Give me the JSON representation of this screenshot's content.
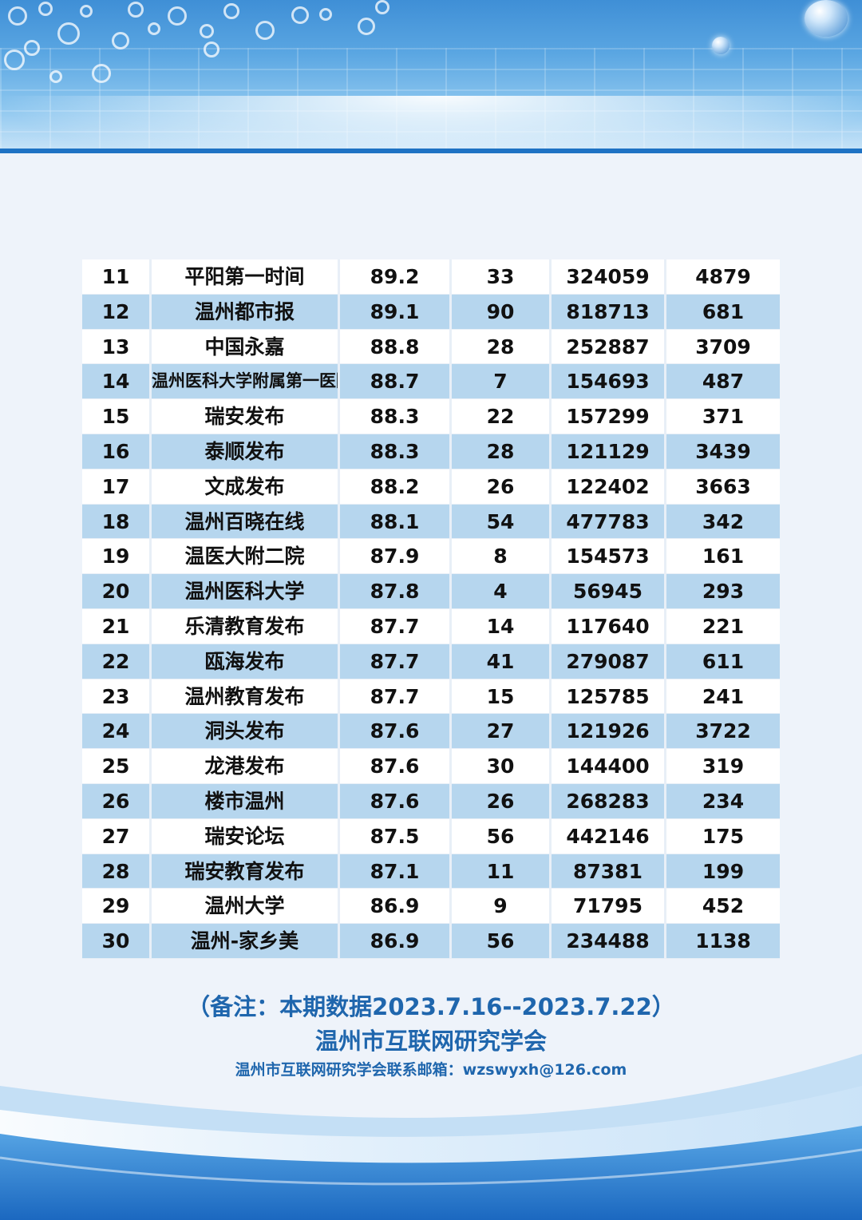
{
  "rows": [
    {
      "rank": "11",
      "name": "平阳第一时间",
      "score": "89.2",
      "posts": "33",
      "reads": "324059",
      "likes": "4879"
    },
    {
      "rank": "12",
      "name": "温州都市报",
      "score": "89.1",
      "posts": "90",
      "reads": "818713",
      "likes": "681"
    },
    {
      "rank": "13",
      "name": "中国永嘉",
      "score": "88.8",
      "posts": "28",
      "reads": "252887",
      "likes": "3709"
    },
    {
      "rank": "14",
      "name": "温州医科大学附属第一医院",
      "score": "88.7",
      "posts": "7",
      "reads": "154693",
      "likes": "487"
    },
    {
      "rank": "15",
      "name": "瑞安发布",
      "score": "88.3",
      "posts": "22",
      "reads": "157299",
      "likes": "371"
    },
    {
      "rank": "16",
      "name": "泰顺发布",
      "score": "88.3",
      "posts": "28",
      "reads": "121129",
      "likes": "3439"
    },
    {
      "rank": "17",
      "name": "文成发布",
      "score": "88.2",
      "posts": "26",
      "reads": "122402",
      "likes": "3663"
    },
    {
      "rank": "18",
      "name": "温州百晓在线",
      "score": "88.1",
      "posts": "54",
      "reads": "477783",
      "likes": "342"
    },
    {
      "rank": "19",
      "name": "温医大附二院",
      "score": "87.9",
      "posts": "8",
      "reads": "154573",
      "likes": "161"
    },
    {
      "rank": "20",
      "name": "温州医科大学",
      "score": "87.8",
      "posts": "4",
      "reads": "56945",
      "likes": "293"
    },
    {
      "rank": "21",
      "name": "乐清教育发布",
      "score": "87.7",
      "posts": "14",
      "reads": "117640",
      "likes": "221"
    },
    {
      "rank": "22",
      "name": "瓯海发布",
      "score": "87.7",
      "posts": "41",
      "reads": "279087",
      "likes": "611"
    },
    {
      "rank": "23",
      "name": "温州教育发布",
      "score": "87.7",
      "posts": "15",
      "reads": "125785",
      "likes": "241"
    },
    {
      "rank": "24",
      "name": "洞头发布",
      "score": "87.6",
      "posts": "27",
      "reads": "121926",
      "likes": "3722"
    },
    {
      "rank": "25",
      "name": "龙港发布",
      "score": "87.6",
      "posts": "30",
      "reads": "144400",
      "likes": "319"
    },
    {
      "rank": "26",
      "name": "楼市温州",
      "score": "87.6",
      "posts": "26",
      "reads": "268283",
      "likes": "234"
    },
    {
      "rank": "27",
      "name": "瑞安论坛",
      "score": "87.5",
      "posts": "56",
      "reads": "442146",
      "likes": "175"
    },
    {
      "rank": "28",
      "name": "瑞安教育发布",
      "score": "87.1",
      "posts": "11",
      "reads": "87381",
      "likes": "199"
    },
    {
      "rank": "29",
      "name": "温州大学",
      "score": "86.9",
      "posts": "9",
      "reads": "71795",
      "likes": "452"
    },
    {
      "rank": "30",
      "name": "温州-家乡美",
      "score": "86.9",
      "posts": "56",
      "reads": "234488",
      "likes": "1138"
    }
  ],
  "footer": {
    "note": "（备注：本期数据2023.7.16--2023.7.22）",
    "org": "温州市互联网研究学会",
    "contact": "温州市互联网研究学会联系邮箱：wzswyxh@126.com"
  },
  "colors": {
    "row_alt": "#b6d6ee",
    "row_base": "#ffffff",
    "footer_text": "#1f66ad",
    "banner": "#4a98da"
  }
}
